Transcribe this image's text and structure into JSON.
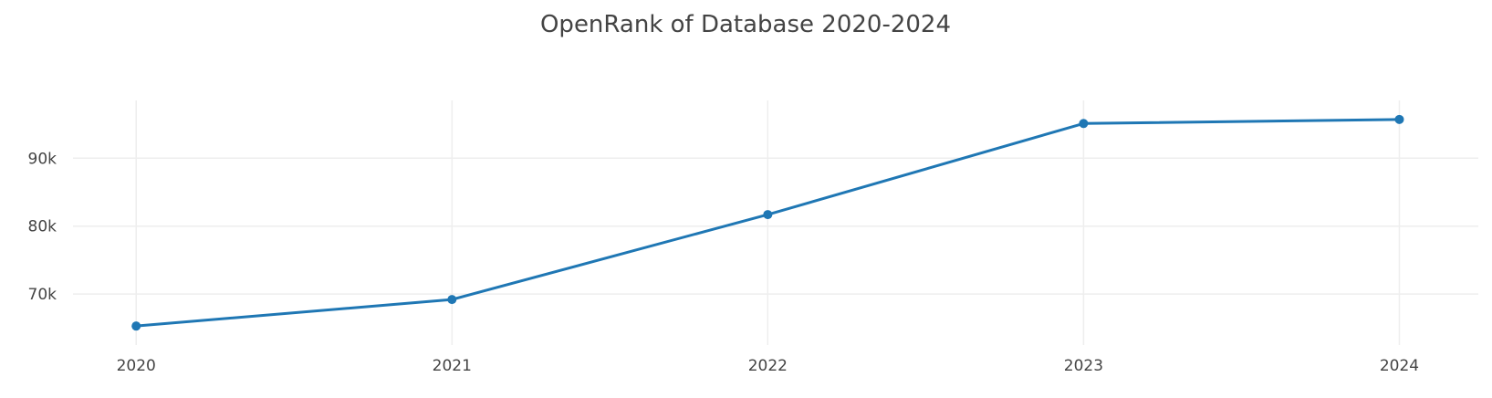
{
  "chart_data": {
    "type": "line",
    "title": "OpenRank of Database 2020-2024",
    "xlabel": "",
    "ylabel": "",
    "x": [
      "2020",
      "2021",
      "2022",
      "2023",
      "2024"
    ],
    "series": [
      {
        "values": [
          65300,
          69200,
          81700,
          95100,
          95700
        ],
        "color": "#1f77b4"
      }
    ],
    "xlim": [
      2019.8,
      2024.25
    ],
    "ylim": [
      62500,
      98500
    ],
    "yticks": [
      70000,
      80000,
      90000
    ],
    "ytick_labels": [
      "70k",
      "80k",
      "90k"
    ],
    "grid": true,
    "legend": "none"
  }
}
